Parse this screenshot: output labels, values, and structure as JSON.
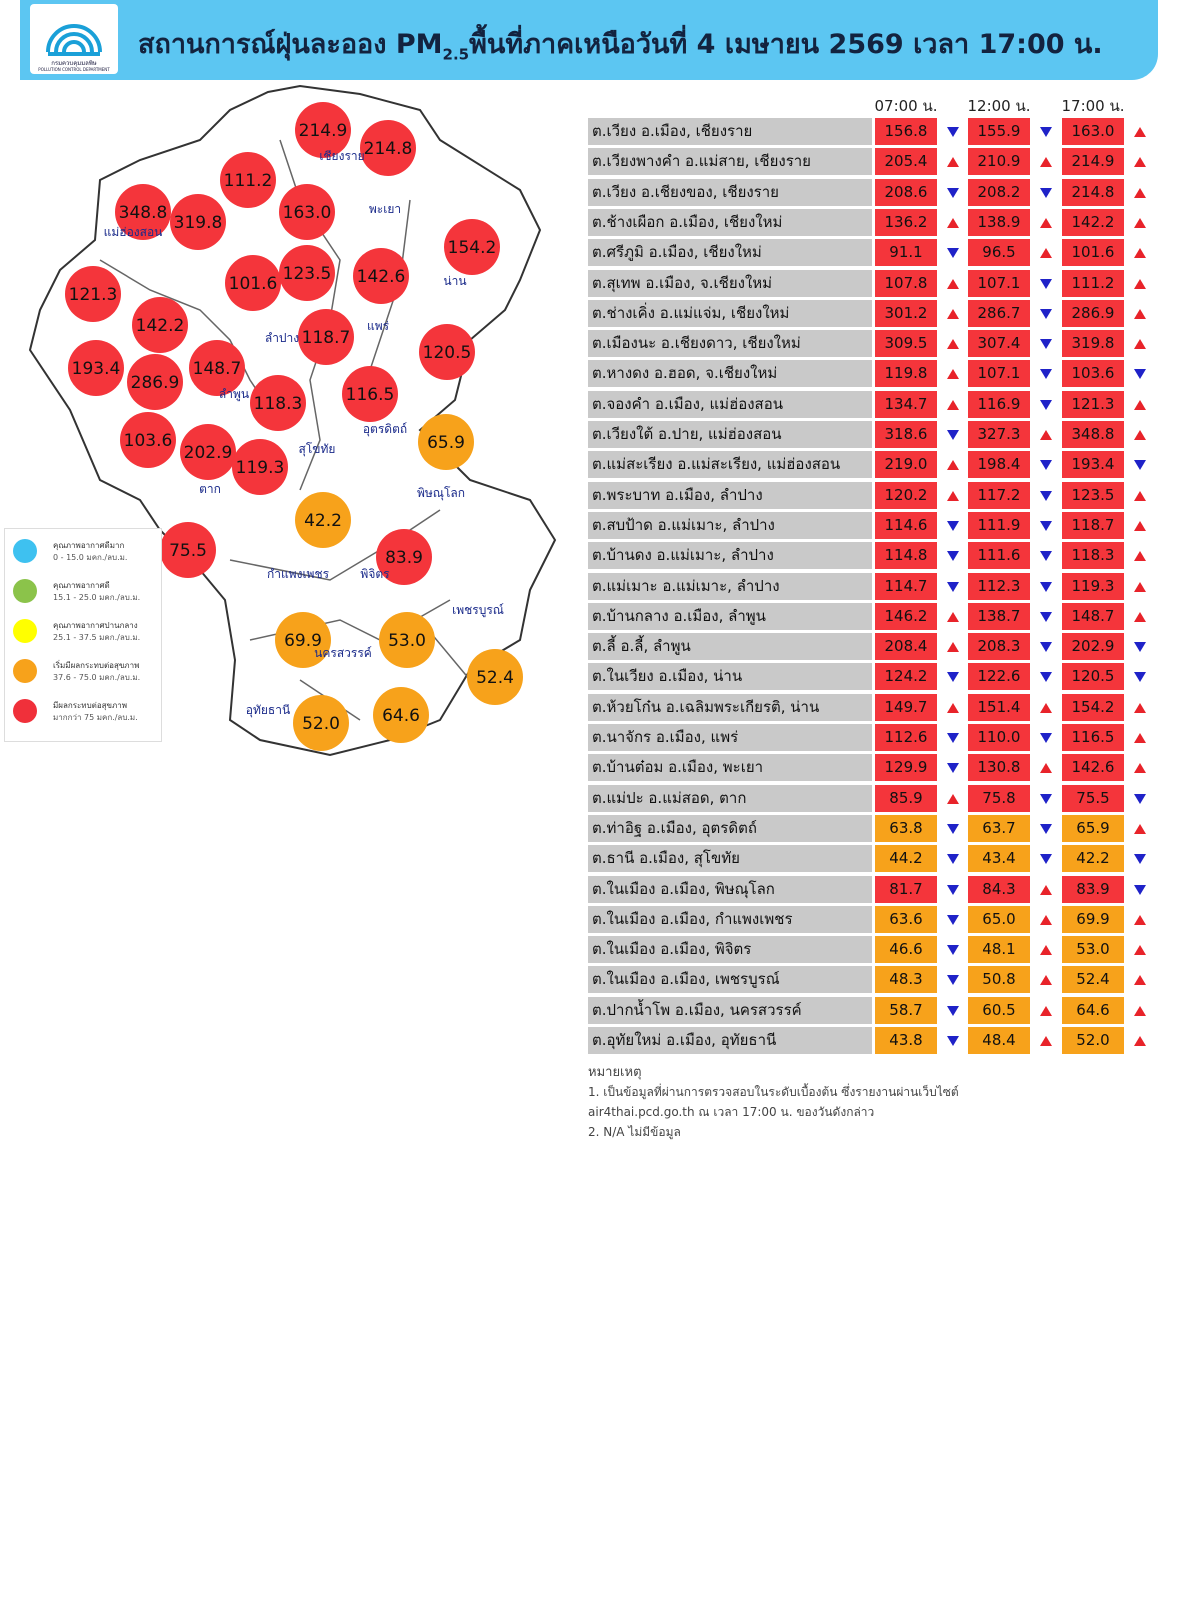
{
  "header": {
    "logo_text": "กรมควบคุมมลพิษ",
    "logo_subtext": "POLLUTION CONTROL DEPARTMENT",
    "title_prefix": "สถานการณ์ฝุ่นละออง PM",
    "title_subscript": "2.5",
    "title_suffix": "พื้นที่ภาคเหนือวันที่ 4 เมษายน 2569 เวลา 17:00 น."
  },
  "table": {
    "columns": [
      "07:00 น.",
      "12:00 น.",
      "17:00 น."
    ],
    "up_color": "#e8232a",
    "down_color": "#1f22c8",
    "rows": [
      {
        "station": "ต.เวียง อ.เมือง, เชียงราย",
        "values": [
          "156.8",
          "155.9",
          "163.0"
        ],
        "trends": [
          "down",
          "down",
          "up"
        ],
        "colors": [
          "#f4353b",
          "#f4353b",
          "#f4353b"
        ]
      },
      {
        "station": "ต.เวียงพางคำ อ.แม่สาย, เชียงราย",
        "values": [
          "205.4",
          "210.9",
          "214.9"
        ],
        "trends": [
          "up",
          "up",
          "up"
        ],
        "colors": [
          "#f4353b",
          "#f4353b",
          "#f4353b"
        ]
      },
      {
        "station": "ต.เวียง อ.เชียงของ, เชียงราย",
        "values": [
          "208.6",
          "208.2",
          "214.8"
        ],
        "trends": [
          "down",
          "down",
          "up"
        ],
        "colors": [
          "#f4353b",
          "#f4353b",
          "#f4353b"
        ]
      },
      {
        "station": "ต.ช้างเผือก อ.เมือง, เชียงใหม่",
        "values": [
          "136.2",
          "138.9",
          "142.2"
        ],
        "trends": [
          "up",
          "up",
          "up"
        ],
        "colors": [
          "#f4353b",
          "#f4353b",
          "#f4353b"
        ]
      },
      {
        "station": "ต.ศรีภูมิ อ.เมือง, เชียงใหม่",
        "values": [
          "91.1",
          "96.5",
          "101.6"
        ],
        "trends": [
          "down",
          "up",
          "up"
        ],
        "colors": [
          "#f4353b",
          "#f4353b",
          "#f4353b"
        ]
      },
      {
        "station": "ต.สุเทพ อ.เมือง, จ.เชียงใหม่",
        "values": [
          "107.8",
          "107.1",
          "111.2"
        ],
        "trends": [
          "up",
          "down",
          "up"
        ],
        "colors": [
          "#f4353b",
          "#f4353b",
          "#f4353b"
        ]
      },
      {
        "station": "ต.ช่างเคิ่ง อ.แม่แจ่ม, เชียงใหม่",
        "values": [
          "301.2",
          "286.7",
          "286.9"
        ],
        "trends": [
          "up",
          "down",
          "up"
        ],
        "colors": [
          "#f4353b",
          "#f4353b",
          "#f4353b"
        ]
      },
      {
        "station": "ต.เมืองนะ อ.เชียงดาว, เชียงใหม่",
        "values": [
          "309.5",
          "307.4",
          "319.8"
        ],
        "trends": [
          "up",
          "down",
          "up"
        ],
        "colors": [
          "#f4353b",
          "#f4353b",
          "#f4353b"
        ]
      },
      {
        "station": "ต.หางดง อ.ฮอด, จ.เชียงใหม่",
        "values": [
          "119.8",
          "107.1",
          "103.6"
        ],
        "trends": [
          "up",
          "down",
          "down"
        ],
        "colors": [
          "#f4353b",
          "#f4353b",
          "#f4353b"
        ]
      },
      {
        "station": "ต.จองคำ อ.เมือง, แม่ฮ่องสอน",
        "values": [
          "134.7",
          "116.9",
          "121.3"
        ],
        "trends": [
          "up",
          "down",
          "up"
        ],
        "colors": [
          "#f4353b",
          "#f4353b",
          "#f4353b"
        ]
      },
      {
        "station": "ต.เวียงใต้ อ.ปาย, แม่ฮ่องสอน",
        "values": [
          "318.6",
          "327.3",
          "348.8"
        ],
        "trends": [
          "down",
          "up",
          "up"
        ],
        "colors": [
          "#f4353b",
          "#f4353b",
          "#f4353b"
        ]
      },
      {
        "station": "ต.แม่สะเรียง อ.แม่สะเรียง, แม่ฮ่องสอน",
        "values": [
          "219.0",
          "198.4",
          "193.4"
        ],
        "trends": [
          "up",
          "down",
          "down"
        ],
        "colors": [
          "#f4353b",
          "#f4353b",
          "#f4353b"
        ]
      },
      {
        "station": "ต.พระบาท อ.เมือง, ลำปาง",
        "values": [
          "120.2",
          "117.2",
          "123.5"
        ],
        "trends": [
          "up",
          "down",
          "up"
        ],
        "colors": [
          "#f4353b",
          "#f4353b",
          "#f4353b"
        ]
      },
      {
        "station": "ต.สบป้าด อ.แม่เมาะ, ลำปาง",
        "values": [
          "114.6",
          "111.9",
          "118.7"
        ],
        "trends": [
          "down",
          "down",
          "up"
        ],
        "colors": [
          "#f4353b",
          "#f4353b",
          "#f4353b"
        ]
      },
      {
        "station": "ต.บ้านดง อ.แม่เมาะ, ลำปาง",
        "values": [
          "114.8",
          "111.6",
          "118.3"
        ],
        "trends": [
          "down",
          "down",
          "up"
        ],
        "colors": [
          "#f4353b",
          "#f4353b",
          "#f4353b"
        ]
      },
      {
        "station": "ต.แม่เมาะ อ.แม่เมาะ, ลำปาง",
        "values": [
          "114.7",
          "112.3",
          "119.3"
        ],
        "trends": [
          "down",
          "down",
          "up"
        ],
        "colors": [
          "#f4353b",
          "#f4353b",
          "#f4353b"
        ]
      },
      {
        "station": "ต.บ้านกลาง อ.เมือง, ลำพูน",
        "values": [
          "146.2",
          "138.7",
          "148.7"
        ],
        "trends": [
          "up",
          "down",
          "up"
        ],
        "colors": [
          "#f4353b",
          "#f4353b",
          "#f4353b"
        ]
      },
      {
        "station": "ต.ลี้ อ.ลี้, ลำพูน",
        "values": [
          "208.4",
          "208.3",
          "202.9"
        ],
        "trends": [
          "up",
          "down",
          "down"
        ],
        "colors": [
          "#f4353b",
          "#f4353b",
          "#f4353b"
        ]
      },
      {
        "station": "ต.ในเวียง อ.เมือง, น่าน",
        "values": [
          "124.2",
          "122.6",
          "120.5"
        ],
        "trends": [
          "down",
          "down",
          "down"
        ],
        "colors": [
          "#f4353b",
          "#f4353b",
          "#f4353b"
        ]
      },
      {
        "station": "ต.ห้วยโก๋น อ.เฉลิมพระเกียรติ, น่าน",
        "values": [
          "149.7",
          "151.4",
          "154.2"
        ],
        "trends": [
          "up",
          "up",
          "up"
        ],
        "colors": [
          "#f4353b",
          "#f4353b",
          "#f4353b"
        ]
      },
      {
        "station": "ต.นาจักร อ.เมือง, แพร่",
        "values": [
          "112.6",
          "110.0",
          "116.5"
        ],
        "trends": [
          "down",
          "down",
          "up"
        ],
        "colors": [
          "#f4353b",
          "#f4353b",
          "#f4353b"
        ]
      },
      {
        "station": "ต.บ้านต๋อม อ.เมือง, พะเยา",
        "values": [
          "129.9",
          "130.8",
          "142.6"
        ],
        "trends": [
          "down",
          "up",
          "up"
        ],
        "colors": [
          "#f4353b",
          "#f4353b",
          "#f4353b"
        ]
      },
      {
        "station": "ต.แม่ปะ อ.แม่สอด, ตาก",
        "values": [
          "85.9",
          "75.8",
          "75.5"
        ],
        "trends": [
          "up",
          "down",
          "down"
        ],
        "colors": [
          "#f4353b",
          "#f4353b",
          "#f4353b"
        ]
      },
      {
        "station": "ต.ท่าอิฐ อ.เมือง, อุตรดิตถ์",
        "values": [
          "63.8",
          "63.7",
          "65.9"
        ],
        "trends": [
          "down",
          "down",
          "up"
        ],
        "colors": [
          "#f7a21b",
          "#f7a21b",
          "#f7a21b"
        ]
      },
      {
        "station": "ต.ธานี อ.เมือง, สุโขทัย",
        "values": [
          "44.2",
          "43.4",
          "42.2"
        ],
        "trends": [
          "down",
          "down",
          "down"
        ],
        "colors": [
          "#f7a21b",
          "#f7a21b",
          "#f7a21b"
        ]
      },
      {
        "station": "ต.ในเมือง อ.เมือง, พิษณุโลก",
        "values": [
          "81.7",
          "84.3",
          "83.9"
        ],
        "trends": [
          "down",
          "up",
          "down"
        ],
        "colors": [
          "#f4353b",
          "#f4353b",
          "#f4353b"
        ]
      },
      {
        "station": "ต.ในเมือง อ.เมือง, กำแพงเพชร",
        "values": [
          "63.6",
          "65.0",
          "69.9"
        ],
        "trends": [
          "down",
          "up",
          "up"
        ],
        "colors": [
          "#f7a21b",
          "#f7a21b",
          "#f7a21b"
        ]
      },
      {
        "station": "ต.ในเมือง อ.เมือง, พิจิตร",
        "values": [
          "46.6",
          "48.1",
          "53.0"
        ],
        "trends": [
          "down",
          "up",
          "up"
        ],
        "colors": [
          "#f7a21b",
          "#f7a21b",
          "#f7a21b"
        ]
      },
      {
        "station": "ต.ในเมือง อ.เมือง, เพชรบูรณ์",
        "values": [
          "48.3",
          "50.8",
          "52.4"
        ],
        "trends": [
          "down",
          "up",
          "up"
        ],
        "colors": [
          "#f7a21b",
          "#f7a21b",
          "#f7a21b"
        ]
      },
      {
        "station": "ต.ปากน้ำโพ อ.เมือง, นครสวรรค์",
        "values": [
          "58.7",
          "60.5",
          "64.6"
        ],
        "trends": [
          "down",
          "up",
          "up"
        ],
        "colors": [
          "#f7a21b",
          "#f7a21b",
          "#f7a21b"
        ]
      },
      {
        "station": "ต.อุทัยใหม่ อ.เมือง, อุทัยธานี",
        "values": [
          "43.8",
          "48.4",
          "52.0"
        ],
        "trends": [
          "down",
          "up",
          "up"
        ],
        "colors": [
          "#f7a21b",
          "#f7a21b",
          "#f7a21b"
        ]
      }
    ]
  },
  "notes": {
    "title": "หมายเหตุ",
    "lines": [
      "1. เป็นข้อมูลที่ผ่านการตรวจสอบในระดับเบื้องต้น ซึ่งรายงานผ่านเว็บไซต์",
      "air4thai.pcd.go.th ณ เวลา 17:00 น. ของวันดังกล่าว",
      "2. N/A ไม่มีข้อมูล"
    ]
  },
  "map": {
    "bubbles": [
      {
        "value": "214.9",
        "color": "#f4353b"
      },
      {
        "value": "214.8",
        "color": "#f4353b"
      },
      {
        "value": "111.2",
        "color": "#f4353b"
      },
      {
        "value": "163.0",
        "color": "#f4353b"
      },
      {
        "value": "348.8",
        "color": "#f4353b"
      },
      {
        "value": "319.8",
        "color": "#f4353b"
      },
      {
        "value": "154.2",
        "color": "#f4353b"
      },
      {
        "value": "101.6",
        "color": "#f4353b"
      },
      {
        "value": "123.5",
        "color": "#f4353b"
      },
      {
        "value": "142.6",
        "color": "#f4353b"
      },
      {
        "value": "121.3",
        "color": "#f4353b"
      },
      {
        "value": "142.2",
        "color": "#f4353b"
      },
      {
        "value": "118.7",
        "color": "#f4353b"
      },
      {
        "value": "120.5",
        "color": "#f4353b"
      },
      {
        "value": "193.4",
        "color": "#f4353b"
      },
      {
        "value": "286.9",
        "color": "#f4353b"
      },
      {
        "value": "148.7",
        "color": "#f4353b"
      },
      {
        "value": "118.3",
        "color": "#f4353b"
      },
      {
        "value": "116.5",
        "color": "#f4353b"
      },
      {
        "value": "65.9",
        "color": "#f7a21b"
      },
      {
        "value": "103.6",
        "color": "#f4353b"
      },
      {
        "value": "202.9",
        "color": "#f4353b"
      },
      {
        "value": "119.3",
        "color": "#f4353b"
      },
      {
        "value": "42.2",
        "color": "#f7a21b"
      },
      {
        "value": "75.5",
        "color": "#f4353b"
      },
      {
        "value": "83.9",
        "color": "#f4353b"
      },
      {
        "value": "69.9",
        "color": "#f7a21b"
      },
      {
        "value": "53.0",
        "color": "#f7a21b"
      },
      {
        "value": "52.4",
        "color": "#f7a21b"
      },
      {
        "value": "52.0",
        "color": "#f7a21b"
      },
      {
        "value": "64.6",
        "color": "#f7a21b"
      }
    ],
    "provinces": [
      "เชียงราย",
      "พะเยา",
      "แม่ฮ่องสอน",
      "น่าน",
      "แพร่",
      "ลำปาง",
      "ลำพูน",
      "อุตรดิตถ์",
      "สุโขทัย",
      "ตาก",
      "พิษณุโลก",
      "กำแพงเพชร",
      "พิจิตร",
      "เพชรบูรณ์",
      "นครสวรรค์",
      "อุทัยธานี"
    ]
  },
  "legend": [
    {
      "label": "คุณภาพอากาศดีมาก",
      "range": "0 - 15.0 มคก./ลบ.ม.",
      "color": "#3ec1f0"
    },
    {
      "label": "คุณภาพอากาศดี",
      "range": "15.1 - 25.0 มคก./ลบ.ม.",
      "color": "#8bc34a"
    },
    {
      "label": "คุณภาพอากาศปานกลาง",
      "range": "25.1 - 37.5 มคก./ลบ.ม.",
      "color": "#ffff00"
    },
    {
      "label": "เริ่มมีผลกระทบต่อสุขภาพ",
      "range": "37.6 - 75.0 มคก./ลบ.ม.",
      "color": "#f7a21b"
    },
    {
      "label": "มีผลกระทบต่อสุขภาพ",
      "range": "มากกว่า 75 มคก./ลบ.ม.",
      "color": "#f0303a"
    }
  ]
}
